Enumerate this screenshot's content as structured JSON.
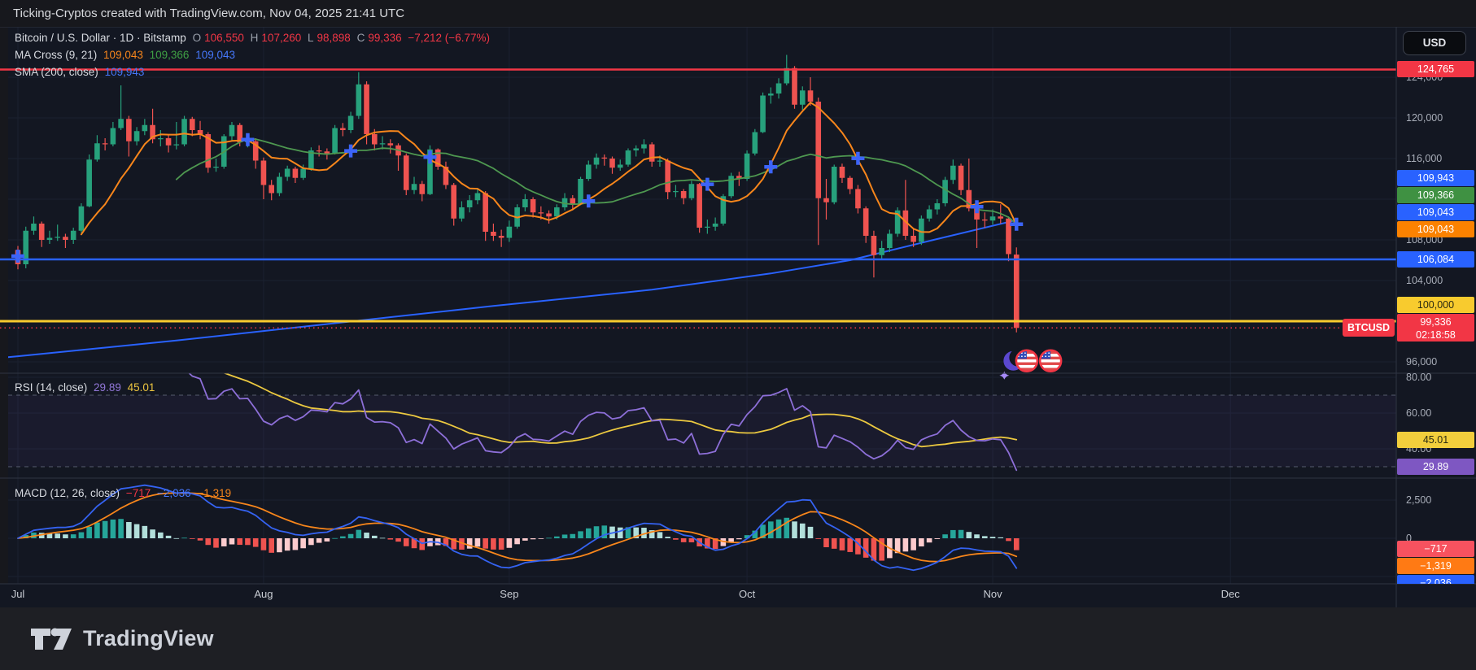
{
  "topbar": {
    "text": "Ticking-Cryptos created with TradingView.com, Nov 04, 2025 21:41 UTC"
  },
  "header": {
    "title": "Bitcoin / U.S. Dollar · 1D · Bitstamp",
    "ohlc": [
      {
        "k": "O",
        "v": "106,550"
      },
      {
        "k": "H",
        "v": "107,260"
      },
      {
        "k": "L",
        "v": "98,898"
      },
      {
        "k": "C",
        "v": "99,336"
      }
    ],
    "change": "−7,212 (−6.77%)",
    "ma_cross": {
      "label": "MA Cross (9, 21)",
      "fast": "109,043",
      "slow": "109,366",
      "cross": "109,043"
    },
    "sma": {
      "label": "SMA (200, close)",
      "value": "109,943"
    }
  },
  "rsi_pane": {
    "label": "RSI (14, close)",
    "rsi_value": "29.89",
    "ma_value": "45.01"
  },
  "macd_pane": {
    "label": "MACD (12, 26, close)",
    "hist_value": "−717",
    "macd_value": "−2,036",
    "signal_value": "−1,319"
  },
  "price_axis": {
    "currency_button": "USD",
    "symbol_tag": "BTCUSD",
    "ticks": [
      {
        "label": "124,000",
        "value": 124000
      },
      {
        "label": "120,000",
        "value": 120000
      },
      {
        "label": "116,000",
        "value": 116000
      },
      {
        "label": "108,000",
        "value": 108000
      },
      {
        "label": "104,000",
        "value": 104000
      },
      {
        "label": "96,000",
        "value": 96000
      }
    ],
    "labels": [
      {
        "text": "124,765",
        "bg": "#f23645",
        "fg": "#ffffff",
        "price": 124765
      },
      {
        "text": "109,943",
        "bg": "#2962ff",
        "fg": "#ffffff",
        "price": 109943
      },
      {
        "text": "109,366",
        "bg": "#3f9142",
        "fg": "#ffffff",
        "price": 109366
      },
      {
        "text": "109,043",
        "bg": "#2962ff",
        "fg": "#ffffff",
        "price": 109043
      },
      {
        "text": "109,043",
        "bg": "#fb8200",
        "fg": "#ffffff",
        "price": 109043
      },
      {
        "text": "106,084",
        "bg": "#2962ff",
        "fg": "#ffffff",
        "price": 106084
      },
      {
        "text": "100,000",
        "bg": "#f8cb2e",
        "fg": "#2a2a12",
        "price": 100000
      },
      {
        "text": "99,336",
        "sub": "02:18:58",
        "bg": "#f23645",
        "fg": "#ffffff",
        "price": 99336
      }
    ]
  },
  "rsi_axis": {
    "ticks": [
      {
        "label": "80.00",
        "value": 80
      },
      {
        "label": "60.00",
        "value": 60
      },
      {
        "label": "40.00",
        "value": 40
      }
    ],
    "labels": [
      {
        "text": "45.01",
        "bg": "#f2ce3c",
        "fg": "#2a2a12",
        "value": 45.01
      },
      {
        "text": "29.89",
        "bg": "#7e57c2",
        "fg": "#ffffff",
        "value": 29.89
      }
    ]
  },
  "macd_axis": {
    "ticks": [
      {
        "label": "2,500",
        "value": 2500
      },
      {
        "label": "0",
        "value": 0
      }
    ],
    "labels": [
      {
        "text": "−717",
        "bg": "#f7525f",
        "fg": "#ffffff",
        "value": -717
      },
      {
        "text": "−1,319",
        "bg": "#ff7a14",
        "fg": "#ffffff",
        "value": -1319
      },
      {
        "text": "−2,036",
        "bg": "#2962ff",
        "fg": "#ffffff",
        "value": -2036
      }
    ]
  },
  "footer": {
    "brand": "TradingView"
  },
  "chart_data": {
    "type": "candlestick+indicators",
    "symbol": "BTCUSD",
    "exchange": "Bitstamp",
    "interval": "1D",
    "last": {
      "open": 106550,
      "high": 107260,
      "low": 98898,
      "close": 99336,
      "change": -7212,
      "change_pct": -6.77
    },
    "x_months": [
      {
        "label": "Jul",
        "day": 0
      },
      {
        "label": "Aug",
        "day": 31
      },
      {
        "label": "Sep",
        "day": 62
      },
      {
        "label": "Oct",
        "day": 92
      },
      {
        "label": "Nov",
        "day": 123
      },
      {
        "label": "Dec",
        "day": 153
      }
    ],
    "price_gridlines": [
      124000,
      120000,
      116000,
      112000,
      108000,
      104000,
      100000,
      96000
    ],
    "rsi_gridlines": [
      80,
      60,
      40
    ],
    "rsi_guides": [
      70,
      30
    ],
    "macd_gridlines": [
      2500,
      0,
      -2500
    ],
    "levels": [
      {
        "price": 124765,
        "color": "#f23645",
        "style": "solid",
        "width": 2.5
      },
      {
        "price": 106084,
        "color": "#2962ff",
        "style": "solid",
        "width": 2.5
      },
      {
        "price": 100000,
        "color": "#f8cb2e",
        "style": "solid",
        "width": 3
      },
      {
        "price": 99336,
        "color": "#f23645",
        "style": "dotted",
        "width": 1.5
      }
    ],
    "indicators": {
      "ma_fast_len": 9,
      "ma_slow_len": 21,
      "rsi_len": 14,
      "rsi_ma_len": 14,
      "macd_params": [
        12,
        26,
        9
      ],
      "sma200_points": [
        [
          -2,
          96400
        ],
        [
          0,
          96550
        ],
        [
          20,
          98100
        ],
        [
          40,
          99800
        ],
        [
          60,
          101500
        ],
        [
          80,
          103100
        ],
        [
          95,
          104700
        ],
        [
          105,
          106000
        ],
        [
          115,
          107900
        ],
        [
          126,
          109943
        ]
      ]
    },
    "markers_extra": [
      {
        "day": 0,
        "price": 106400
      }
    ],
    "events": [
      {
        "type": "moon-star-icon",
        "day": 125.6,
        "price": 96100
      },
      {
        "type": "us-flag-icon",
        "day": 127.3,
        "price": 96100
      },
      {
        "type": "us-flag-icon",
        "day": 130.3,
        "price": 96100
      }
    ],
    "colors": {
      "up": "#27a17c",
      "down": "#ef5350",
      "ma_fast": "#f8861b",
      "ma_slow": "#4e9850",
      "sma200": "#2962ff",
      "rsi": "#8d6fd8",
      "rsi_ma": "#ecc940",
      "macd": "#3563f2",
      "signal": "#f8861b",
      "hist_up_grow": "#26a69a",
      "hist_up_fall": "#b2dfdb",
      "hist_dn_fall": "#ef5350",
      "hist_dn_grow": "#fccbcd",
      "marker": "#3c64f8",
      "grid": "#1b2130",
      "separator": "#2f3443"
    },
    "candles": [
      [
        107000,
        107400,
        105100,
        105600
      ],
      [
        105600,
        109300,
        105200,
        108900
      ],
      [
        108900,
        110300,
        108500,
        109600
      ],
      [
        109600,
        109800,
        107300,
        108000
      ],
      [
        108000,
        108900,
        107600,
        108200
      ],
      [
        108200,
        109500,
        107900,
        108300
      ],
      [
        108300,
        108600,
        107200,
        108000
      ],
      [
        108000,
        109200,
        107600,
        108900
      ],
      [
        108900,
        111600,
        108700,
        111300
      ],
      [
        111300,
        116400,
        111200,
        115900
      ],
      [
        115900,
        118300,
        115700,
        117500
      ],
      [
        117500,
        118000,
        116800,
        117400
      ],
      [
        117400,
        119600,
        117200,
        119000
      ],
      [
        119000,
        123200,
        118800,
        119900
      ],
      [
        119900,
        120200,
        116200,
        117700
      ],
      [
        117700,
        119100,
        117300,
        118700
      ],
      [
        118700,
        119900,
        118300,
        119300
      ],
      [
        119300,
        120900,
        117500,
        117900
      ],
      [
        117900,
        118800,
        117200,
        118000
      ],
      [
        118000,
        118400,
        116600,
        117300
      ],
      [
        117300,
        119600,
        116900,
        117400
      ],
      [
        117400,
        120200,
        117200,
        119900
      ],
      [
        119900,
        120100,
        118200,
        118800
      ],
      [
        118800,
        119700,
        117900,
        118400
      ],
      [
        118400,
        118600,
        114600,
        115100
      ],
      [
        115100,
        116000,
        114700,
        115200
      ],
      [
        115200,
        118400,
        115000,
        118200
      ],
      [
        118200,
        119600,
        117800,
        119300
      ],
      [
        119300,
        119500,
        117200,
        117600
      ],
      [
        117600,
        118300,
        117100,
        117700
      ],
      [
        117700,
        118000,
        115000,
        115800
      ],
      [
        115800,
        116100,
        112000,
        113400
      ],
      [
        113400,
        113900,
        111900,
        112600
      ],
      [
        112600,
        114600,
        112300,
        114200
      ],
      [
        114200,
        115300,
        113800,
        115000
      ],
      [
        115000,
        115200,
        113600,
        114100
      ],
      [
        114100,
        115400,
        113900,
        115000
      ],
      [
        115000,
        117100,
        114800,
        116800
      ],
      [
        116800,
        117300,
        116200,
        116700
      ],
      [
        116700,
        117000,
        115900,
        116500
      ],
      [
        116500,
        119300,
        116400,
        119000
      ],
      [
        119000,
        119500,
        118200,
        118800
      ],
      [
        118800,
        120600,
        118500,
        120200
      ],
      [
        120200,
        124500,
        119900,
        123300
      ],
      [
        123300,
        123600,
        117400,
        118400
      ],
      [
        118400,
        118900,
        116800,
        117400
      ],
      [
        117400,
        118200,
        116900,
        117500
      ],
      [
        117500,
        117900,
        116500,
        117300
      ],
      [
        117300,
        117500,
        114800,
        116300
      ],
      [
        116300,
        116500,
        112400,
        112900
      ],
      [
        112900,
        114200,
        112500,
        113500
      ],
      [
        113500,
        113800,
        111800,
        112500
      ],
      [
        112500,
        117300,
        112400,
        116900
      ],
      [
        116900,
        117000,
        114900,
        115200
      ],
      [
        115200,
        115700,
        113000,
        113400
      ],
      [
        113400,
        113600,
        109400,
        110100
      ],
      [
        110100,
        111800,
        109800,
        111200
      ],
      [
        111200,
        112400,
        110700,
        111900
      ],
      [
        111900,
        113100,
        111500,
        112600
      ],
      [
        112600,
        112800,
        107900,
        108800
      ],
      [
        108800,
        109600,
        107900,
        108400
      ],
      [
        108400,
        109000,
        107300,
        108200
      ],
      [
        108200,
        109900,
        107800,
        109300
      ],
      [
        109300,
        111500,
        109100,
        111200
      ],
      [
        111200,
        112500,
        110800,
        112000
      ],
      [
        112000,
        112200,
        110200,
        110700
      ],
      [
        110700,
        111300,
        110000,
        110600
      ],
      [
        110600,
        110900,
        109600,
        110300
      ],
      [
        110300,
        111500,
        110000,
        111200
      ],
      [
        111200,
        112600,
        110900,
        112100
      ],
      [
        112100,
        112400,
        110900,
        111500
      ],
      [
        111500,
        114200,
        111400,
        114000
      ],
      [
        114000,
        115800,
        113800,
        115400
      ],
      [
        115400,
        116500,
        115000,
        116100
      ],
      [
        116100,
        116400,
        115300,
        116000
      ],
      [
        116000,
        116200,
        114500,
        115100
      ],
      [
        115100,
        115900,
        114800,
        115400
      ],
      [
        115400,
        117000,
        115200,
        116800
      ],
      [
        116800,
        117300,
        116200,
        117000
      ],
      [
        117000,
        117900,
        116500,
        117400
      ],
      [
        117400,
        117600,
        115200,
        115700
      ],
      [
        115700,
        116300,
        115200,
        115800
      ],
      [
        115800,
        116000,
        112000,
        112700
      ],
      [
        112700,
        113400,
        112200,
        112800
      ],
      [
        112800,
        113000,
        111500,
        112100
      ],
      [
        112100,
        113800,
        111900,
        113500
      ],
      [
        113500,
        113600,
        108700,
        109200
      ],
      [
        109200,
        110000,
        108600,
        109300
      ],
      [
        109300,
        110200,
        108900,
        109600
      ],
      [
        109600,
        112500,
        109400,
        112300
      ],
      [
        112300,
        114600,
        112100,
        114300
      ],
      [
        114300,
        114700,
        113300,
        114000
      ],
      [
        114000,
        116800,
        113800,
        116500
      ],
      [
        116500,
        118900,
        116300,
        118600
      ],
      [
        118600,
        122500,
        118500,
        122200
      ],
      [
        122200,
        123000,
        121400,
        122400
      ],
      [
        122400,
        123900,
        121900,
        123400
      ],
      [
        123400,
        126200,
        123200,
        124900
      ],
      [
        124900,
        125100,
        120900,
        121300
      ],
      [
        121300,
        123100,
        120800,
        122700
      ],
      [
        122700,
        124000,
        121200,
        121600
      ],
      [
        121600,
        122000,
        107500,
        112100
      ],
      [
        112100,
        114000,
        110000,
        111700
      ],
      [
        111700,
        115400,
        111500,
        115200
      ],
      [
        115200,
        115500,
        113600,
        114100
      ],
      [
        114100,
        114300,
        112500,
        113000
      ],
      [
        113000,
        113400,
        110600,
        111100
      ],
      [
        111100,
        111300,
        107700,
        108400
      ],
      [
        108400,
        108900,
        104300,
        106500
      ],
      [
        106500,
        107900,
        106100,
        107200
      ],
      [
        107200,
        109000,
        106800,
        108600
      ],
      [
        108600,
        111200,
        108300,
        110900
      ],
      [
        110900,
        113900,
        108000,
        108400
      ],
      [
        108400,
        109100,
        107300,
        107800
      ],
      [
        107800,
        110400,
        107500,
        110100
      ],
      [
        110100,
        111400,
        109800,
        111000
      ],
      [
        111000,
        112000,
        110500,
        111600
      ],
      [
        111600,
        114200,
        111300,
        113900
      ],
      [
        113900,
        115900,
        113500,
        115300
      ],
      [
        115300,
        115500,
        112400,
        112900
      ],
      [
        112900,
        116000,
        110800,
        111100
      ],
      [
        111100,
        111300,
        107200,
        110000
      ],
      [
        110000,
        110700,
        109200,
        109900
      ],
      [
        109900,
        111000,
        109500,
        110300
      ],
      [
        110300,
        111500,
        109600,
        110100
      ],
      [
        110100,
        110300,
        105900,
        106600
      ],
      [
        106550,
        107260,
        98898,
        99336
      ]
    ]
  }
}
